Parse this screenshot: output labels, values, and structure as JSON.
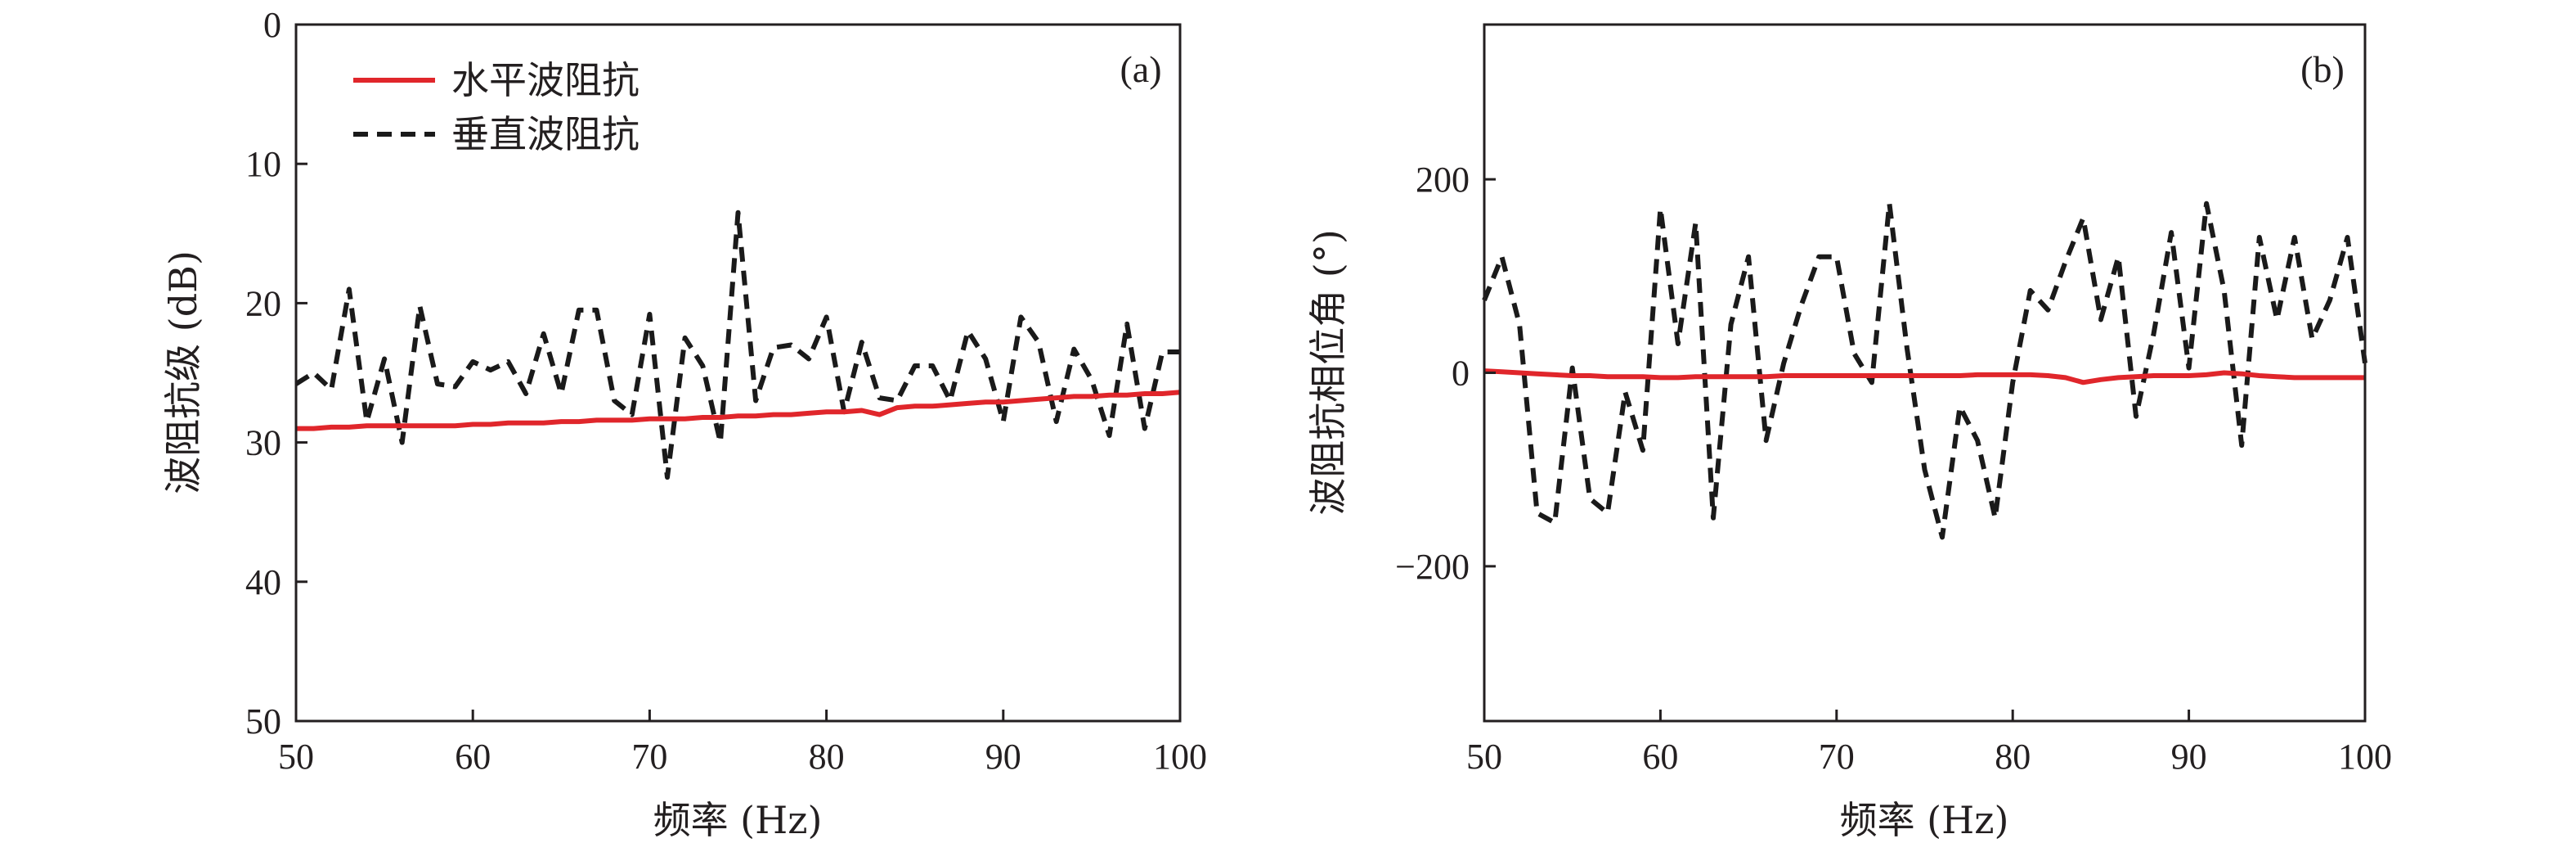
{
  "colors": {
    "horizontal": "#e0262b",
    "vertical": "#1a1a1a",
    "axis": "#231f20"
  },
  "chart_data": [
    {
      "type": "line",
      "panel_label": "(a)",
      "xlabel": "频率 (Hz)",
      "ylabel": "波阻抗级 (dB)",
      "xlim": [
        50,
        100
      ],
      "ylim": [
        0,
        50
      ],
      "y_inverted": true,
      "x_ticks": [
        "50",
        "60",
        "70",
        "80",
        "90",
        "100"
      ],
      "y_ticks": [
        "0",
        "10",
        "20",
        "30",
        "40",
        "50"
      ],
      "x_tick_values": [
        50,
        60,
        70,
        80,
        90,
        100
      ],
      "y_tick_values": [
        0,
        10,
        20,
        30,
        40,
        50
      ],
      "legend_position": "top-left",
      "x": [
        50,
        51,
        52,
        53,
        54,
        55,
        56,
        57,
        58,
        59,
        60,
        61,
        62,
        63,
        64,
        65,
        66,
        67,
        68,
        69,
        70,
        71,
        72,
        73,
        74,
        75,
        76,
        77,
        78,
        79,
        80,
        81,
        82,
        83,
        84,
        85,
        86,
        87,
        88,
        89,
        90,
        91,
        92,
        93,
        94,
        95,
        96,
        97,
        98,
        99,
        100
      ],
      "series": [
        {
          "name": "水平波阻抗",
          "style": "solid",
          "values": [
            29.0,
            29.0,
            28.9,
            28.9,
            28.8,
            28.8,
            28.8,
            28.8,
            28.8,
            28.8,
            28.7,
            28.7,
            28.6,
            28.6,
            28.6,
            28.5,
            28.5,
            28.4,
            28.4,
            28.4,
            28.3,
            28.3,
            28.3,
            28.2,
            28.2,
            28.1,
            28.1,
            28.0,
            28.0,
            27.9,
            27.8,
            27.8,
            27.7,
            28.0,
            27.5,
            27.4,
            27.4,
            27.3,
            27.2,
            27.1,
            27.1,
            27.0,
            26.9,
            26.8,
            26.7,
            26.7,
            26.6,
            26.6,
            26.5,
            26.5,
            26.4
          ]
        },
        {
          "name": "垂直波阻抗",
          "style": "dashed",
          "values": [
            25.8,
            25.0,
            26.2,
            19.0,
            28.5,
            24.0,
            30.0,
            20.2,
            25.8,
            26.0,
            24.2,
            24.8,
            24.2,
            26.5,
            22.2,
            26.5,
            20.5,
            20.5,
            27.0,
            28.0,
            20.8,
            32.5,
            22.5,
            24.5,
            30.0,
            13.5,
            27.0,
            23.2,
            23.0,
            24.0,
            21.0,
            27.8,
            22.8,
            26.8,
            27.0,
            24.5,
            24.5,
            27.0,
            22.0,
            24.0,
            28.5,
            21.0,
            22.8,
            28.5,
            23.3,
            25.5,
            29.5,
            21.5,
            29.0,
            23.5,
            23.5
          ]
        }
      ]
    },
    {
      "type": "line",
      "panel_label": "(b)",
      "xlabel": "频率 (Hz)",
      "ylabel": "波阻抗相位角 (°)",
      "xlim": [
        50,
        100
      ],
      "ylim": [
        -360,
        360
      ],
      "x_ticks": [
        "50",
        "60",
        "70",
        "80",
        "90",
        "100"
      ],
      "y_ticks": [
        "200",
        "0",
        "−200"
      ],
      "x_tick_values": [
        50,
        60,
        70,
        80,
        90,
        100
      ],
      "y_tick_values": [
        200,
        0,
        -200
      ],
      "x": [
        50,
        51,
        52,
        53,
        54,
        55,
        56,
        57,
        58,
        59,
        60,
        61,
        62,
        63,
        64,
        65,
        66,
        67,
        68,
        69,
        70,
        71,
        72,
        73,
        74,
        75,
        76,
        77,
        78,
        79,
        80,
        81,
        82,
        83,
        84,
        85,
        86,
        87,
        88,
        89,
        90,
        91,
        92,
        93,
        94,
        95,
        96,
        97,
        98,
        99,
        100
      ],
      "series": [
        {
          "name": "水平波阻抗",
          "style": "solid",
          "values": [
            2,
            1,
            0,
            -1,
            -2,
            -3,
            -3,
            -4,
            -4,
            -4,
            -5,
            -5,
            -4,
            -4,
            -4,
            -4,
            -4,
            -3,
            -3,
            -3,
            -3,
            -3,
            -3,
            -3,
            -3,
            -3,
            -3,
            -3,
            -2,
            -2,
            -2,
            -2,
            -3,
            -5,
            -10,
            -7,
            -5,
            -4,
            -3,
            -3,
            -3,
            -2,
            0,
            -1,
            -3,
            -4,
            -5,
            -5,
            -5,
            -5,
            -5
          ]
        },
        {
          "name": "垂直波阻抗",
          "style": "dashed",
          "values": [
            75,
            120,
            50,
            -145,
            -155,
            5,
            -130,
            -145,
            -20,
            -80,
            170,
            30,
            155,
            -150,
            50,
            120,
            -70,
            10,
            70,
            120,
            120,
            20,
            -10,
            175,
            25,
            -100,
            -170,
            -35,
            -70,
            -150,
            -10,
            85,
            65,
            115,
            160,
            55,
            120,
            -45,
            40,
            145,
            5,
            175,
            85,
            -75,
            140,
            55,
            140,
            35,
            75,
            140,
            10
          ]
        }
      ]
    }
  ]
}
